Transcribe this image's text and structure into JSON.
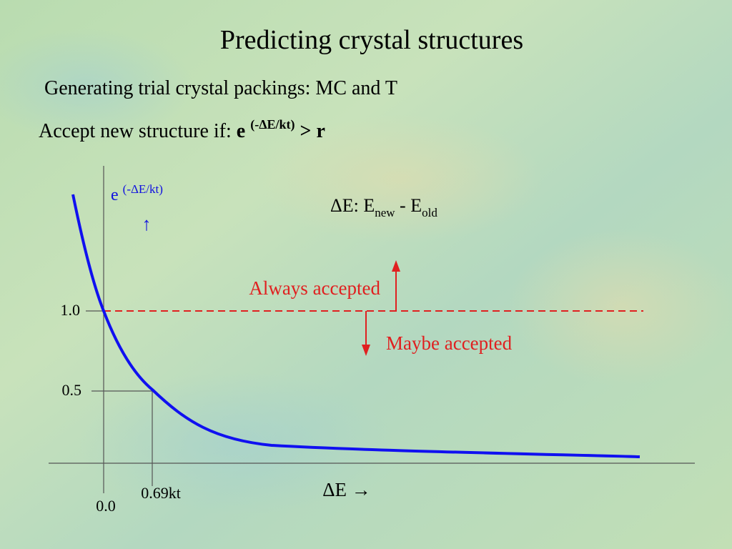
{
  "title": "Predicting crystal structures",
  "subtitle": "Generating trial crystal packings: MC and T",
  "criterion": {
    "lead": "Accept new structure if:",
    "base": "e",
    "exponent": "(-ΔE/kt)",
    "tail": "> r"
  },
  "diagram": {
    "y_label": {
      "base": "e",
      "exponent": "(-ΔE/kt)",
      "arrow": "↑"
    },
    "definition": {
      "lhs": "ΔE: E",
      "sub1": "new",
      "mid": "- E",
      "sub2": "old"
    },
    "ticks": {
      "one": "1.0",
      "half": "0.5",
      "zero": "0.0",
      "x_half": "0.69kt"
    },
    "x_label": "ΔE →",
    "above": "Always accepted",
    "below": "Maybe accepted"
  }
}
